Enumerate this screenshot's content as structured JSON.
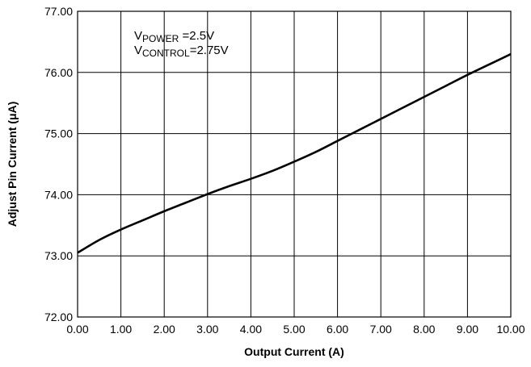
{
  "chart_data": {
    "type": "line",
    "xlabel": "Output Current (A)",
    "ylabel": "Adjust Pin Current (μA)",
    "xlim": [
      0,
      10
    ],
    "ylim": [
      72,
      77
    ],
    "xticks": [
      "0.00",
      "1.00",
      "2.00",
      "3.00",
      "4.00",
      "5.00",
      "6.00",
      "7.00",
      "8.00",
      "9.00",
      "10.00"
    ],
    "yticks": [
      "72.00",
      "73.00",
      "74.00",
      "75.00",
      "76.00",
      "77.00"
    ],
    "grid": true,
    "annotations": [
      {
        "main": "V",
        "sub": "POWER",
        "rest": " =2.5V"
      },
      {
        "main": "V",
        "sub": "CONTROL",
        "rest": "=2.75V"
      }
    ],
    "series": [
      {
        "color": "#000000",
        "x": [
          0,
          0.5,
          1,
          1.5,
          2,
          2.5,
          3,
          3.5,
          4,
          4.5,
          5,
          5.5,
          6,
          6.5,
          7,
          7.5,
          8,
          8.5,
          9,
          9.5,
          10
        ],
        "y": [
          73.05,
          73.26,
          73.43,
          73.58,
          73.73,
          73.87,
          74.01,
          74.14,
          74.26,
          74.39,
          74.54,
          74.7,
          74.88,
          75.06,
          75.24,
          75.42,
          75.6,
          75.78,
          75.96,
          76.13,
          76.3
        ]
      }
    ]
  }
}
